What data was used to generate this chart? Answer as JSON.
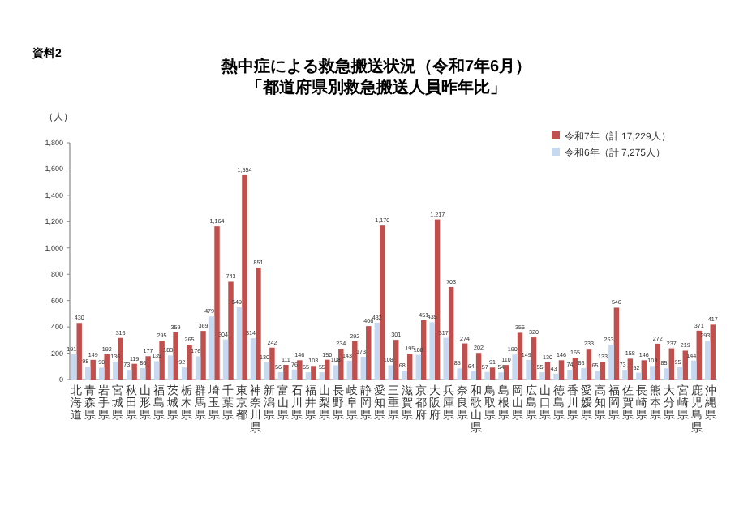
{
  "chart_data": {
    "type": "bar",
    "title": "熱中症による救急搬送状況（令和7年6月）",
    "subtitle": "「都道府県別救急搬送人員昨年比」",
    "ylabel": "（人）",
    "annotations": [
      "資料2"
    ],
    "categories": [
      "北海道",
      "青森県",
      "岩手県",
      "宮城県",
      "秋田県",
      "山形県",
      "福島県",
      "茨城県",
      "栃木県",
      "群馬県",
      "埼玉県",
      "千葉県",
      "東京都",
      "神奈川県",
      "新潟県",
      "富山県",
      "石川県",
      "福井県",
      "山梨県",
      "長野県",
      "岐阜県",
      "静岡県",
      "愛知県",
      "三重県",
      "滋賀県",
      "京都府",
      "大阪府",
      "兵庫県",
      "奈良県",
      "和歌山県",
      "鳥取県",
      "島根県",
      "岡山県",
      "広島県",
      "山口県",
      "徳島県",
      "香川県",
      "愛媛県",
      "高知県",
      "福岡県",
      "佐賀県",
      "長崎県",
      "熊本県",
      "大分県",
      "宮崎県",
      "鹿児島県",
      "沖縄県"
    ],
    "series": [
      {
        "name": "令和7年（計 17,229人）",
        "color": "#c0504d",
        "values": [
          430,
          149,
          192,
          316,
          119,
          177,
          295,
          359,
          265,
          369,
          1164,
          743,
          1554,
          851,
          242,
          111,
          146,
          103,
          150,
          234,
          292,
          406,
          1170,
          301,
          195,
          451,
          1217,
          703,
          274,
          202,
          91,
          110,
          355,
          320,
          130,
          146,
          165,
          233,
          133,
          546,
          158,
          146,
          272,
          237,
          219,
          371,
          417
        ],
        "value_labels": [
          "430",
          "149",
          "192",
          "316",
          "119",
          "177",
          "295",
          "359",
          "265",
          "369",
          "1,164",
          "743",
          "1,554",
          "851",
          "242",
          "111",
          "146",
          "103",
          "150",
          "234",
          "292",
          "406",
          "1,170",
          "301",
          "195",
          "451",
          "1,217",
          "703",
          "274",
          "202",
          "91",
          "110",
          "355",
          "320",
          "130",
          "146",
          "165",
          "233",
          "133",
          "546",
          "158",
          "146",
          "272",
          "237",
          "219",
          "371",
          "417"
        ]
      },
      {
        "name": "令和6年（計 7,275人）",
        "color": "#c6d9f1",
        "values": [
          191,
          98,
          90,
          136,
          73,
          86,
          139,
          183,
          92,
          176,
          479,
          304,
          549,
          314,
          130,
          56,
          76,
          55,
          55,
          108,
          143,
          173,
          432,
          108,
          68,
          188,
          435,
          317,
          85,
          64,
          57,
          54,
          190,
          149,
          55,
          43,
          74,
          86,
          65,
          263,
          73,
          52,
          103,
          85,
          95,
          144,
          293
        ],
        "value_labels": [
          "191",
          "98",
          "90",
          "136",
          "73",
          "86",
          "139",
          "183",
          "92",
          "176",
          "479",
          "304",
          "549",
          "314",
          "130",
          "56",
          "76",
          "55",
          "55",
          "108",
          "143",
          "173",
          "432",
          "108",
          "68",
          "188",
          "435",
          "317",
          "85",
          "64",
          "57",
          "54",
          "190",
          "149",
          "55",
          "43",
          "74",
          "86",
          "65",
          "263",
          "73",
          "52",
          "103",
          "85",
          "95",
          "144",
          "293"
        ]
      }
    ],
    "ylim": [
      0,
      1800
    ],
    "yticks": [
      {
        "value": 0,
        "label": "0"
      },
      {
        "value": 200,
        "label": "200"
      },
      {
        "value": 400,
        "label": "400"
      },
      {
        "value": 600,
        "label": "600"
      },
      {
        "value": 800,
        "label": "800"
      },
      {
        "value": 1000,
        "label": "1,000"
      },
      {
        "value": 1200,
        "label": "1,200"
      },
      {
        "value": 1400,
        "label": "1,400"
      },
      {
        "value": 1600,
        "label": "1,600"
      },
      {
        "value": 1800,
        "label": "1,800"
      }
    ],
    "legend": "top right",
    "grid": false
  }
}
